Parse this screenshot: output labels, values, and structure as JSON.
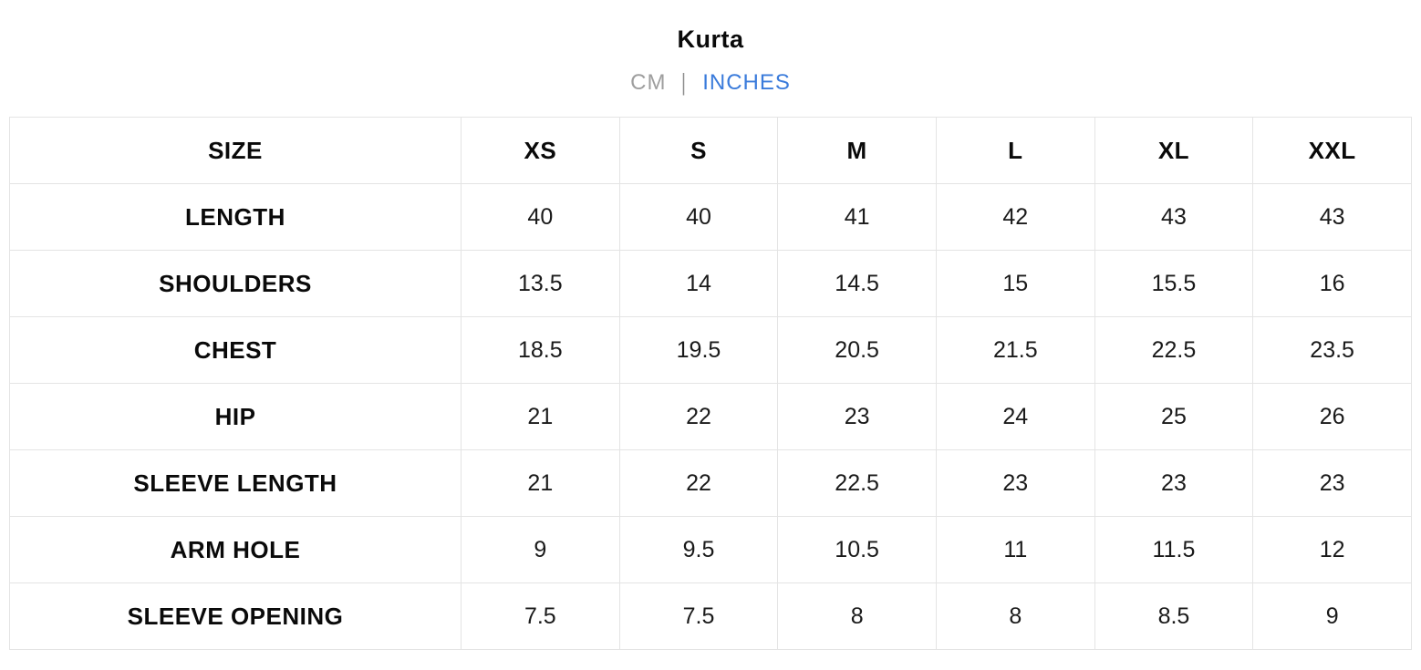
{
  "header": {
    "title": "Kurta",
    "unit_toggle": {
      "cm_label": "CM",
      "separator": "|",
      "inches_label": "INCHES",
      "active_unit": "INCHES"
    }
  },
  "colors": {
    "active_unit": "#3a7bdb",
    "inactive_unit": "#9e9e9e",
    "table_border": "#e4e4e4",
    "text": "#0a0a0a",
    "background": "#ffffff"
  },
  "chart_data": {
    "type": "table",
    "title": "Kurta",
    "unit": "INCHES",
    "columns": [
      "SIZE",
      "XS",
      "S",
      "M",
      "L",
      "XL",
      "XXL"
    ],
    "rows": [
      {
        "label": "LENGTH",
        "values": [
          "40",
          "40",
          "41",
          "42",
          "43",
          "43"
        ]
      },
      {
        "label": "SHOULDERS",
        "values": [
          "13.5",
          "14",
          "14.5",
          "15",
          "15.5",
          "16"
        ]
      },
      {
        "label": "CHEST",
        "values": [
          "18.5",
          "19.5",
          "20.5",
          "21.5",
          "22.5",
          "23.5"
        ]
      },
      {
        "label": "HIP",
        "values": [
          "21",
          "22",
          "23",
          "24",
          "25",
          "26"
        ]
      },
      {
        "label": "SLEEVE LENGTH",
        "values": [
          "21",
          "22",
          "22.5",
          "23",
          "23",
          "23"
        ]
      },
      {
        "label": "ARM HOLE",
        "values": [
          "9",
          "9.5",
          "10.5",
          "11",
          "11.5",
          "12"
        ]
      },
      {
        "label": "SLEEVE OPENING",
        "values": [
          "7.5",
          "7.5",
          "8",
          "8",
          "8.5",
          "9"
        ]
      }
    ]
  }
}
